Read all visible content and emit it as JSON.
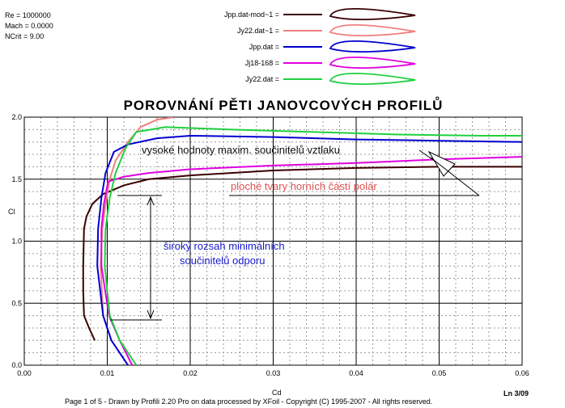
{
  "info": {
    "re": "Re = 1000000",
    "mach": "Mach = 0.0000",
    "ncrit": "NCrit = 9.00"
  },
  "colors": {
    "dark_brown": "#3a0000",
    "salmon": "#f08080",
    "blue": "#0000d0",
    "magenta": "#e000e0",
    "green": "#20d040",
    "annot_dark": "#111111",
    "annot_red": "#e05050",
    "annot_blue": "#1a1acc"
  },
  "chart_data": {
    "type": "line",
    "title": "POROVNÁNÍ  PĚTI  JANOVCOVÝCH  PROFILŮ",
    "xlabel": "Cd",
    "ylabel": "Cl",
    "xlim": [
      0,
      0.06
    ],
    "ylim": [
      0,
      2.0
    ],
    "grid": true,
    "x_ticks": [
      "0.00",
      "0.01",
      "0.02",
      "0.03",
      "0.04",
      "0.05",
      "0.06"
    ],
    "y_ticks": [
      "0.0",
      "0.5",
      "1.0",
      "1.5",
      "2.0"
    ],
    "legend_position": "top",
    "series": [
      {
        "name": "Jpp.dat-mod~1 =",
        "color": "dark_brown",
        "points": [
          [
            0.0085,
            0.2
          ],
          [
            0.0078,
            0.3
          ],
          [
            0.0072,
            0.4
          ],
          [
            0.0071,
            0.6
          ],
          [
            0.0071,
            0.8
          ],
          [
            0.0072,
            1.1
          ],
          [
            0.0075,
            1.2
          ],
          [
            0.0082,
            1.3
          ],
          [
            0.0095,
            1.38
          ],
          [
            0.012,
            1.45
          ],
          [
            0.015,
            1.5
          ],
          [
            0.02,
            1.53
          ],
          [
            0.03,
            1.57
          ],
          [
            0.04,
            1.59
          ],
          [
            0.05,
            1.6
          ],
          [
            0.06,
            1.6
          ]
        ]
      },
      {
        "name": "Jy22.dat~1 =",
        "color": "salmon",
        "points": [
          [
            0.0125,
            0.0
          ],
          [
            0.0105,
            0.2
          ],
          [
            0.0095,
            0.4
          ],
          [
            0.0092,
            0.8
          ],
          [
            0.0094,
            1.1
          ],
          [
            0.0098,
            1.3
          ],
          [
            0.0103,
            1.5
          ],
          [
            0.011,
            1.65
          ],
          [
            0.0125,
            1.8
          ],
          [
            0.014,
            1.92
          ],
          [
            0.016,
            1.98
          ],
          [
            0.018,
            2.0
          ]
        ]
      },
      {
        "name": "Jpp.dat =",
        "color": "blue",
        "points": [
          [
            0.0125,
            0.0
          ],
          [
            0.0105,
            0.2
          ],
          [
            0.0095,
            0.4
          ],
          [
            0.0088,
            0.8
          ],
          [
            0.0089,
            1.1
          ],
          [
            0.0093,
            1.35
          ],
          [
            0.0098,
            1.55
          ],
          [
            0.0108,
            1.72
          ],
          [
            0.0125,
            1.78
          ],
          [
            0.016,
            1.83
          ],
          [
            0.02,
            1.85
          ],
          [
            0.03,
            1.84
          ],
          [
            0.04,
            1.82
          ],
          [
            0.05,
            1.81
          ],
          [
            0.06,
            1.8
          ]
        ]
      },
      {
        "name": "Jj18-168 =",
        "color": "magenta",
        "points": [
          [
            0.013,
            0.0
          ],
          [
            0.0115,
            0.2
          ],
          [
            0.0102,
            0.4
          ],
          [
            0.0093,
            0.8
          ],
          [
            0.0093,
            1.1
          ],
          [
            0.0096,
            1.3
          ],
          [
            0.0101,
            1.48
          ],
          [
            0.012,
            1.52
          ],
          [
            0.015,
            1.55
          ],
          [
            0.02,
            1.58
          ],
          [
            0.03,
            1.61
          ],
          [
            0.04,
            1.63
          ],
          [
            0.05,
            1.66
          ],
          [
            0.06,
            1.68
          ]
        ]
      },
      {
        "name": "Jy22.dat =",
        "color": "green",
        "points": [
          [
            0.0135,
            0.0
          ],
          [
            0.0115,
            0.2
          ],
          [
            0.0103,
            0.4
          ],
          [
            0.0097,
            0.8
          ],
          [
            0.0098,
            1.1
          ],
          [
            0.0103,
            1.35
          ],
          [
            0.011,
            1.55
          ],
          [
            0.0122,
            1.75
          ],
          [
            0.0135,
            1.88
          ],
          [
            0.017,
            1.92
          ],
          [
            0.025,
            1.9
          ],
          [
            0.035,
            1.88
          ],
          [
            0.045,
            1.86
          ],
          [
            0.055,
            1.85
          ],
          [
            0.06,
            1.85
          ]
        ]
      }
    ]
  },
  "annotations": {
    "high_cl": "vysoké hodnoty maxim. součinitelů vztlaku",
    "flat_tops": "ploché tvary horních částí polár",
    "wide_range_1": "široký rozsah minimálních",
    "wide_range_2": "součinitelů odporu"
  },
  "footer": {
    "text": "Page 1 of 5   -   Drawn by Profili 2.20 Pro on data processed by  XFoil - Copyright (C) 1995-2007 - All rights reserved.",
    "page_code": "Ln 3/09"
  }
}
